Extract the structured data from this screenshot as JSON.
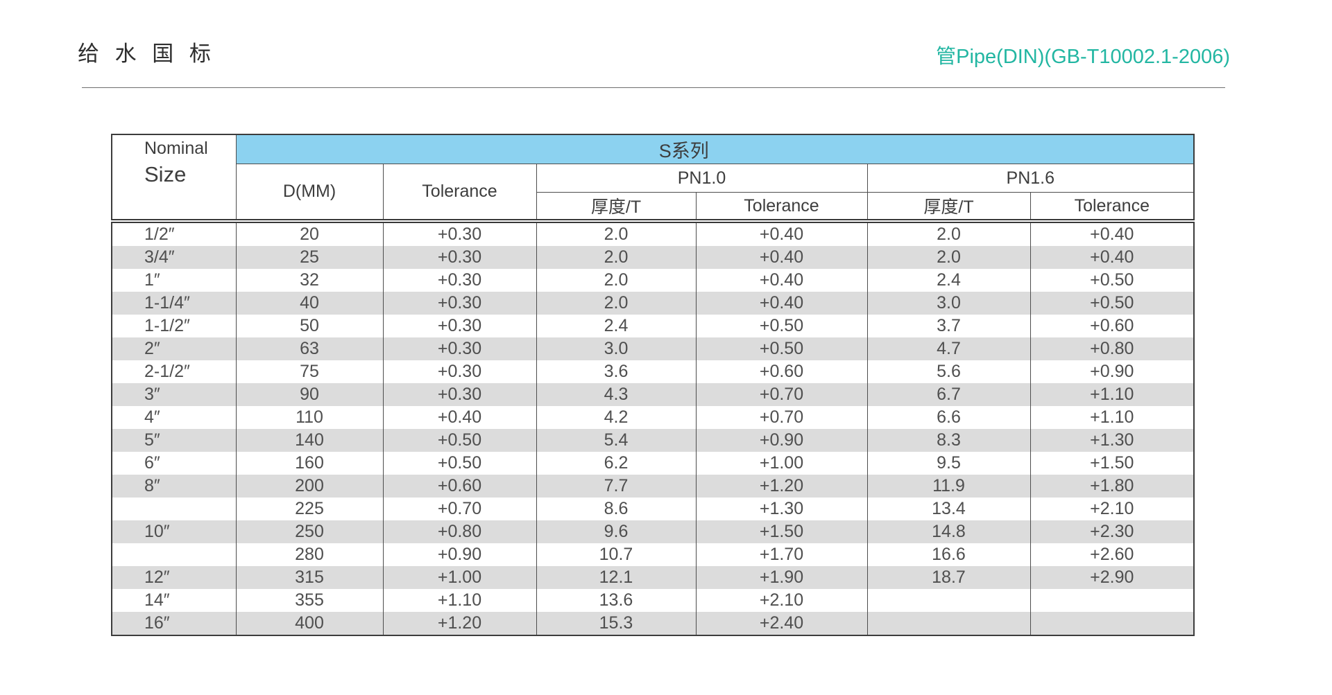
{
  "page": {
    "title": "给 水 国 标",
    "subtitle": "管Pipe(DIN)(GB-T10002.1-2006)"
  },
  "colors": {
    "accent_teal": "#22b6a2",
    "series_band_blue": "#8cd2f0",
    "row_stripe_gray": "#dcdcdc"
  },
  "table": {
    "series_header": "S系列",
    "headers": {
      "nominal": "Nominal",
      "size": "Size",
      "d_mm": "D(MM)",
      "d_tolerance": "Tolerance",
      "pn10": "PN1.0",
      "pn16": "PN1.6",
      "pn10_thickness": "厚度/T",
      "pn10_tolerance": "Tolerance",
      "pn16_thickness": "厚度/T",
      "pn16_tolerance": "Tolerance"
    },
    "rows": [
      [
        "1/2″",
        "20",
        "+0.30",
        "2.0",
        "+0.40",
        "2.0",
        "+0.40"
      ],
      [
        "3/4″",
        "25",
        "+0.30",
        "2.0",
        "+0.40",
        "2.0",
        "+0.40"
      ],
      [
        "1″",
        "32",
        "+0.30",
        "2.0",
        "+0.40",
        "2.4",
        "+0.50"
      ],
      [
        "1-1/4″",
        "40",
        "+0.30",
        "2.0",
        "+0.40",
        "3.0",
        "+0.50"
      ],
      [
        "1-1/2″",
        "50",
        "+0.30",
        "2.4",
        "+0.50",
        "3.7",
        "+0.60"
      ],
      [
        "2″",
        "63",
        "+0.30",
        "3.0",
        "+0.50",
        "4.7",
        "+0.80"
      ],
      [
        "2-1/2″",
        "75",
        "+0.30",
        "3.6",
        "+0.60",
        "5.6",
        "+0.90"
      ],
      [
        "3″",
        "90",
        "+0.30",
        "4.3",
        "+0.70",
        "6.7",
        "+1.10"
      ],
      [
        "4″",
        "110",
        "+0.40",
        "4.2",
        "+0.70",
        "6.6",
        "+1.10"
      ],
      [
        "5″",
        "140",
        "+0.50",
        "5.4",
        "+0.90",
        "8.3",
        "+1.30"
      ],
      [
        "6″",
        "160",
        "+0.50",
        "6.2",
        "+1.00",
        "9.5",
        "+1.50"
      ],
      [
        "8″",
        "200",
        "+0.60",
        "7.7",
        "+1.20",
        "11.9",
        "+1.80"
      ],
      [
        "",
        "225",
        "+0.70",
        "8.6",
        "+1.30",
        "13.4",
        "+2.10"
      ],
      [
        "10″",
        "250",
        "+0.80",
        "9.6",
        "+1.50",
        "14.8",
        "+2.30"
      ],
      [
        "",
        "280",
        "+0.90",
        "10.7",
        "+1.70",
        "16.6",
        "+2.60"
      ],
      [
        "12″",
        "315",
        "+1.00",
        "12.1",
        "+1.90",
        "18.7",
        "+2.90"
      ],
      [
        "14″",
        "355",
        "+1.10",
        "13.6",
        "+2.10",
        "",
        ""
      ],
      [
        "16″",
        "400",
        "+1.20",
        "15.3",
        "+2.40",
        "",
        ""
      ]
    ]
  }
}
